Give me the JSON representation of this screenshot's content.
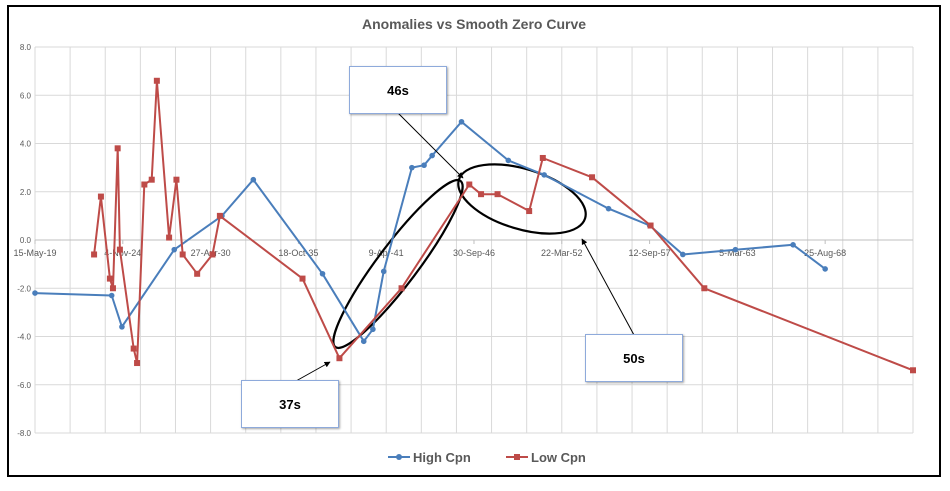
{
  "chart_data": {
    "type": "line",
    "title": "Anomalies vs Smooth Zero Curve",
    "xlabel": "",
    "ylabel": "",
    "ylim": [
      -8.0,
      8.0
    ],
    "yticks": [
      "8.0",
      "6.0",
      "4.0",
      "2.0",
      "0.0",
      "-2.0",
      "-4.0",
      "-6.0",
      "-8.0"
    ],
    "xtick_labels": [
      "15-May-19",
      "4-Nov-24",
      "27-Apr-30",
      "18-Oct-35",
      "9-Apr-41",
      "30-Sep-46",
      "22-Mar-52",
      "12-Sep-57",
      "5-Mar-63",
      "25-Aug-68"
    ],
    "xlim": [
      "15-May-19",
      "16-Feb-74"
    ],
    "grid": true,
    "legend": "bottom",
    "series": [
      {
        "name": "High Cpn",
        "color": "#4a7ebb",
        "marker": "circle",
        "points": [
          [
            "15-May-19",
            -2.2
          ],
          [
            "25-Feb-24",
            -2.3
          ],
          [
            "15-Oct-24",
            -3.6
          ],
          [
            "20-Jan-28",
            -0.4
          ],
          [
            "10-Jan-31",
            1.0
          ],
          [
            "25-Dec-32",
            2.5
          ],
          [
            "20-Apr-37",
            -1.4
          ],
          [
            "15-Nov-39",
            -4.2
          ],
          [
            "10-Jun-40",
            -3.7
          ],
          [
            "12-Feb-41",
            -1.3
          ],
          [
            "15-Nov-42",
            3.0
          ],
          [
            "20-Aug-43",
            3.1
          ],
          [
            "20-Feb-44",
            3.5
          ],
          [
            "20-Dec-45",
            4.9
          ],
          [
            "20-Nov-48",
            3.3
          ],
          [
            "15-Feb-51",
            2.7
          ],
          [
            "20-Feb-55",
            1.3
          ],
          [
            "14-Sep-57",
            0.6
          ],
          [
            "10-Oct-59",
            -0.6
          ],
          [
            "20-Jan-63",
            -0.4
          ],
          [
            "25-Aug-66",
            -0.2
          ],
          [
            "25-Aug-68",
            -1.2
          ]
        ]
      },
      {
        "name": "Low Cpn",
        "color": "#be4b48",
        "marker": "square",
        "points": [
          [
            "20-Jan-23",
            -0.6
          ],
          [
            "25-Jun-23",
            1.8
          ],
          [
            "15-Jan-24",
            -1.6
          ],
          [
            "25-Mar-24",
            -2.0
          ],
          [
            "10-Jul-24",
            3.8
          ],
          [
            "30-Aug-24",
            -0.4
          ],
          [
            "10-Jul-25",
            -4.5
          ],
          [
            "25-Sep-25",
            -5.1
          ],
          [
            "10-Mar-26",
            2.3
          ],
          [
            "25-Aug-26",
            2.5
          ],
          [
            "20-Dec-26",
            6.6
          ],
          [
            "25-Sep-27",
            0.1
          ],
          [
            "10-Mar-28",
            2.5
          ],
          [
            "30-Jul-28",
            -0.6
          ],
          [
            "25-Jun-29",
            -1.4
          ],
          [
            "10-Jun-30",
            -0.6
          ],
          [
            "25-Nov-30",
            1.0
          ],
          [
            "20-Jan-36",
            -1.6
          ],
          [
            "10-May-38",
            -4.9
          ],
          [
            "25-Mar-42",
            -2.0
          ],
          [
            "15-Jun-46",
            2.3
          ],
          [
            "10-Mar-47",
            1.9
          ],
          [
            "20-Mar-48",
            1.9
          ],
          [
            "10-Mar-50",
            1.2
          ],
          [
            "15-Jan-51",
            3.4
          ],
          [
            "10-Feb-54",
            2.6
          ],
          [
            "05-Oct-57",
            0.6
          ],
          [
            "10-Feb-61",
            -2.0
          ],
          [
            "16-Feb-74",
            -5.4
          ]
        ]
      }
    ],
    "annotations": [
      {
        "label": "46s"
      },
      {
        "label": "37s"
      },
      {
        "label": "50s"
      }
    ]
  }
}
